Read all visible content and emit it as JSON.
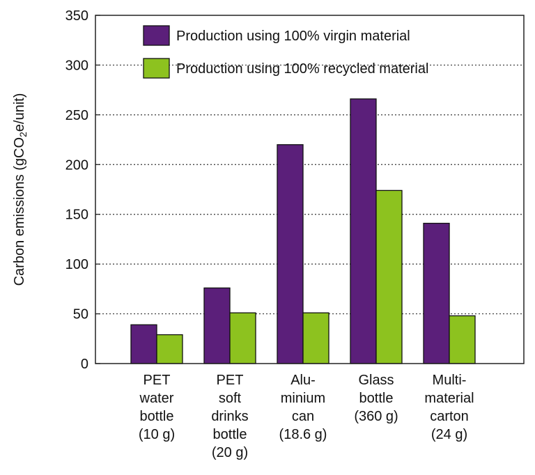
{
  "chart_data": {
    "type": "bar",
    "ylabel_parts": [
      "Carbon emissions (gCO",
      "2",
      "e/unit)"
    ],
    "ylim": [
      0,
      350
    ],
    "yticks": [
      0,
      50,
      100,
      150,
      200,
      250,
      300,
      350
    ],
    "grid": true,
    "legend_position": "top-right",
    "categories": [
      [
        "PET",
        "water",
        "bottle",
        "(10 g)"
      ],
      [
        "PET",
        "soft",
        "drinks",
        "bottle",
        "(20 g)"
      ],
      [
        "Alu-",
        "minium",
        "can",
        "(18.6 g)"
      ],
      [
        "Glass",
        "bottle",
        "(360 g)"
      ],
      [
        "Multi-",
        "material",
        "carton",
        "(24 g)"
      ]
    ],
    "series": [
      {
        "name": "Production using 100% virgin material",
        "color": "#5b1f7a",
        "values": [
          39,
          76,
          220,
          266,
          141
        ]
      },
      {
        "name": "Production using 100% recycled material",
        "color": "#8dc21f",
        "values": [
          29,
          51,
          51,
          174,
          48
        ]
      }
    ]
  }
}
